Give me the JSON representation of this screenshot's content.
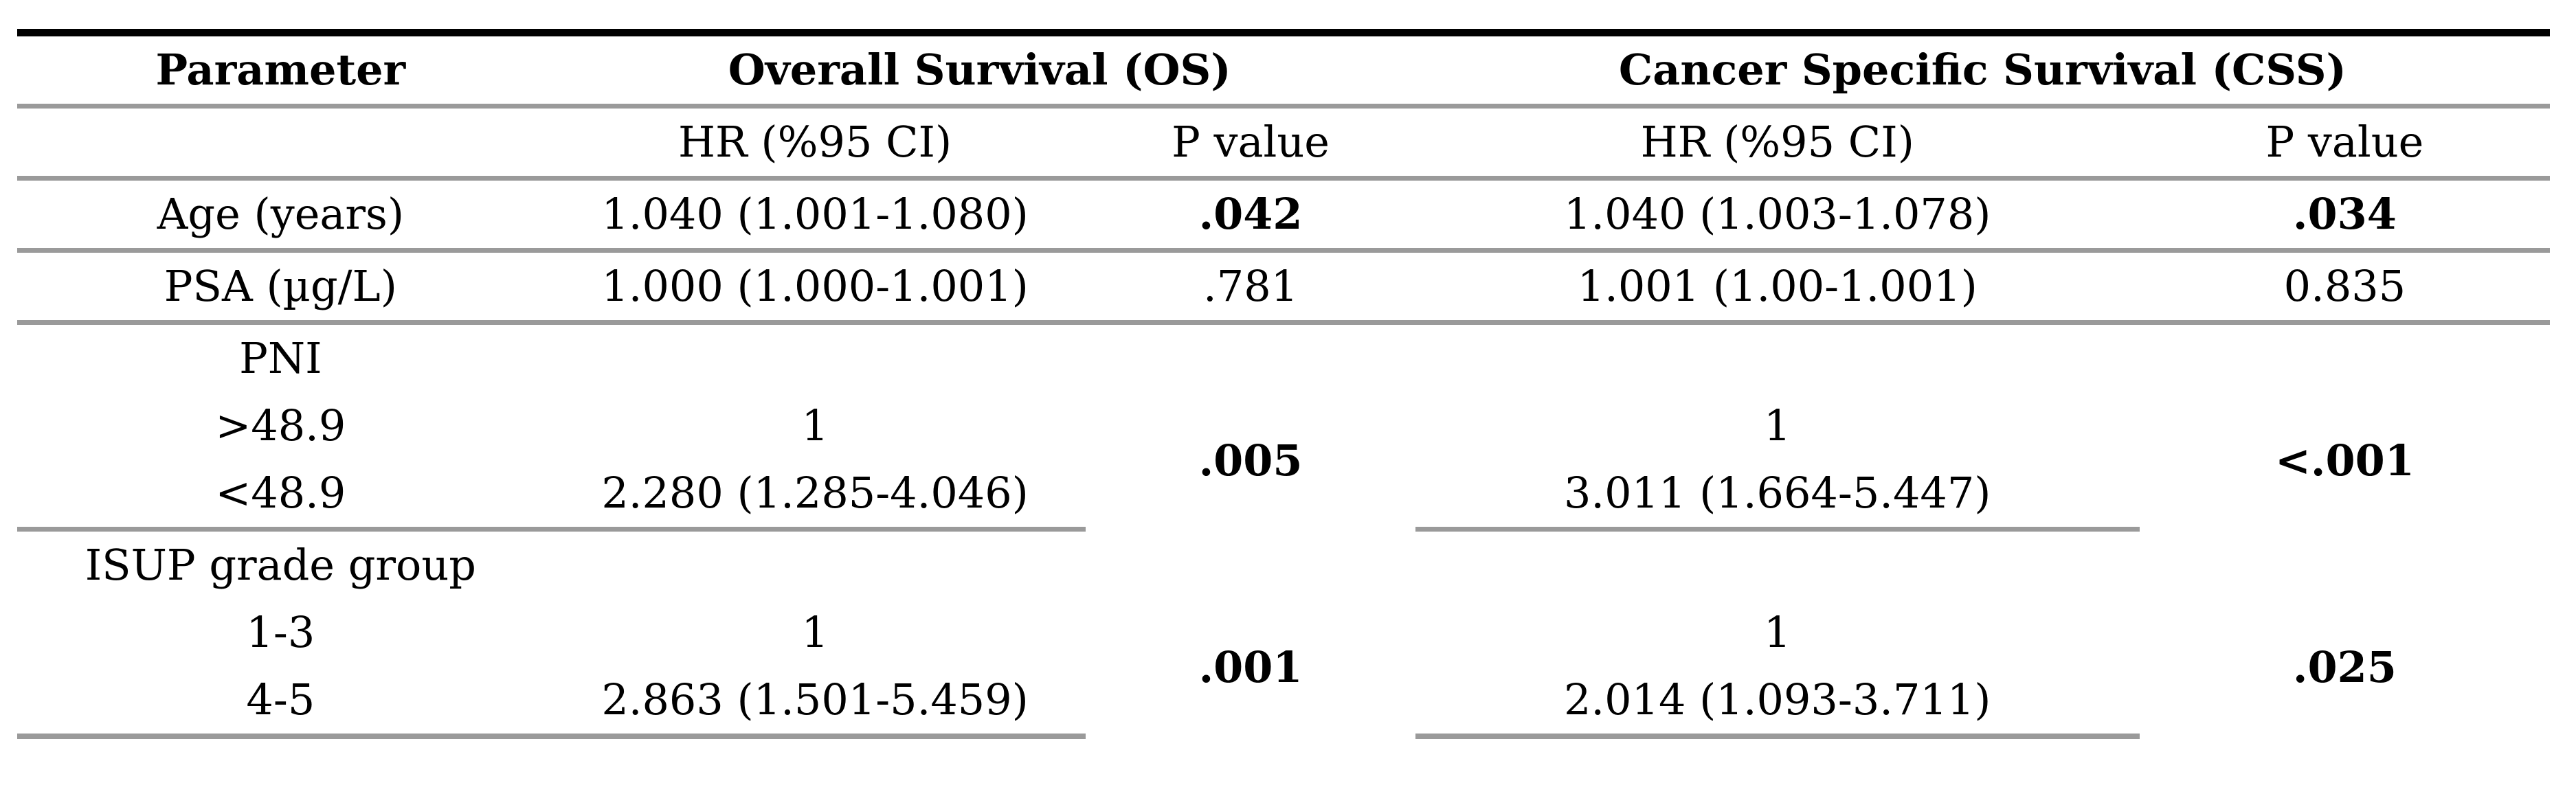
{
  "table": {
    "header": {
      "parameter": "Parameter",
      "os_group": "Overall Survival (OS)",
      "css_group": "Cancer Specific Survival (CSS)",
      "os_hr": "HR (%95 CI)",
      "os_p": "P value",
      "css_hr": "HR (%95 CI)",
      "css_p": "P value"
    },
    "rows": {
      "age": {
        "label": "Age (years)",
        "os_hr": "1.040 (1.001-1.080)",
        "os_p": ".042",
        "css_hr": "1.040 (1.003-1.078)",
        "css_p": ".034"
      },
      "psa": {
        "label": "PSA (µg/L)",
        "os_hr": "1.000 (1.000-1.001)",
        "os_p": ".781",
        "css_hr": "1.001 (1.00-1.001)",
        "css_p": "0.835"
      },
      "pni": {
        "label": "PNI",
        "sub1": {
          "label": ">48.9",
          "os_hr": "1",
          "css_hr": "1"
        },
        "sub2": {
          "label": "<48.9",
          "os_hr": "2.280 (1.285-4.046)",
          "css_hr": "3.011 (1.664-5.447)"
        },
        "os_p": ".005",
        "css_p": "<.001"
      },
      "isup": {
        "label": "ISUP grade group",
        "sub1": {
          "label": "1-3",
          "os_hr": "1",
          "css_hr": "1"
        },
        "sub2": {
          "label": "4-5",
          "os_hr": "2.863 (1.501-5.459)",
          "css_hr": "2.014 (1.093-3.711)"
        },
        "os_p": ".001",
        "css_p": ".025"
      }
    }
  },
  "colors": {
    "top_rule": "#000000",
    "row_rule": "#9a9a9a",
    "text": "#000000",
    "background": "#ffffff"
  }
}
